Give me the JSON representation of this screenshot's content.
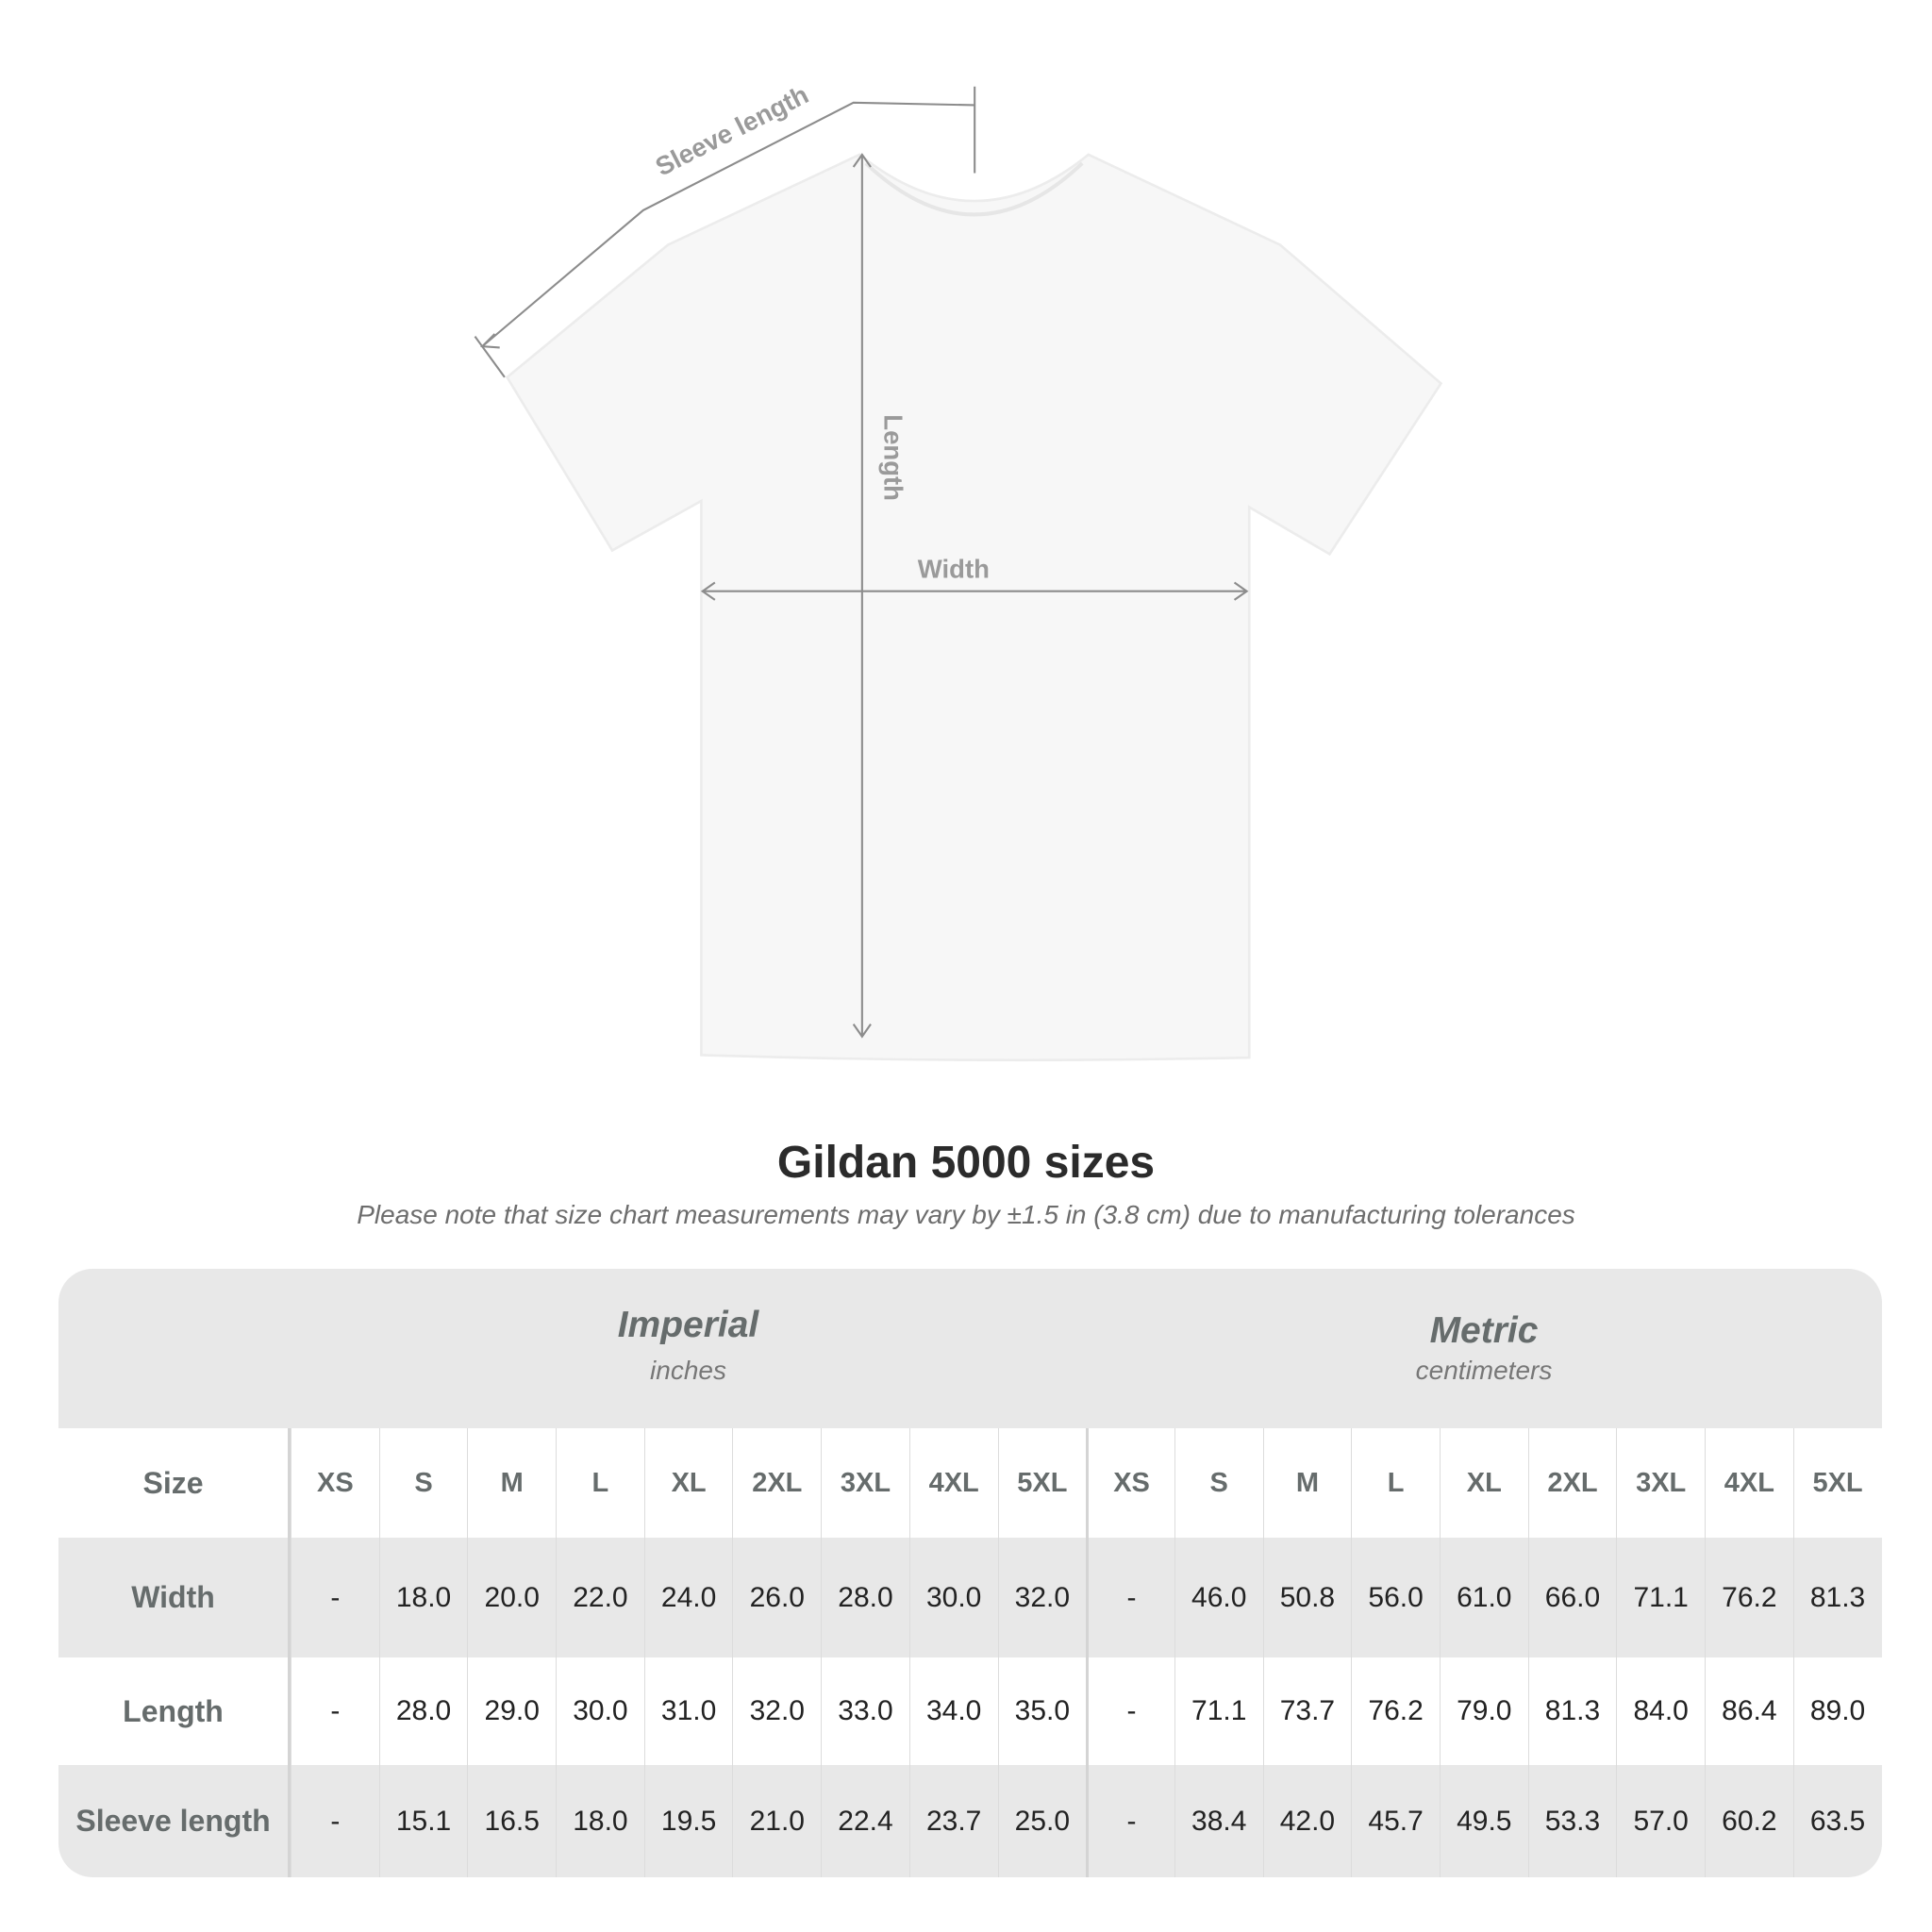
{
  "diagram": {
    "labels": {
      "sleeve_length": "Sleeve length",
      "length": "Length",
      "width": "Width"
    },
    "colors": {
      "shirt": "#f7f7f7",
      "measure_line": "#8c8c8c"
    }
  },
  "title": "Gildan 5000 sizes",
  "note": "Please note that size chart measurements may vary by ±1.5 in (3.8 cm) due to manufacturing tolerances",
  "table": {
    "imperial": {
      "name": "Imperial",
      "unit": "inches"
    },
    "metric": {
      "name": "Metric",
      "unit": "centimeters"
    },
    "size_label": "Size",
    "sizes": [
      "XS",
      "S",
      "M",
      "L",
      "XL",
      "2XL",
      "3XL",
      "4XL",
      "5XL"
    ],
    "rows": [
      {
        "label": "Width",
        "imperial": [
          "-",
          "18.0",
          "20.0",
          "22.0",
          "24.0",
          "26.0",
          "28.0",
          "30.0",
          "32.0"
        ],
        "metric": [
          "-",
          "46.0",
          "50.8",
          "56.0",
          "61.0",
          "66.0",
          "71.1",
          "76.2",
          "81.3"
        ]
      },
      {
        "label": "Length",
        "imperial": [
          "-",
          "28.0",
          "29.0",
          "30.0",
          "31.0",
          "32.0",
          "33.0",
          "34.0",
          "35.0"
        ],
        "metric": [
          "-",
          "71.1",
          "73.7",
          "76.2",
          "79.0",
          "81.3",
          "84.0",
          "86.4",
          "89.0"
        ]
      },
      {
        "label": "Sleeve length",
        "imperial": [
          "-",
          "15.1",
          "16.5",
          "18.0",
          "19.5",
          "21.0",
          "22.4",
          "23.7",
          "25.0"
        ],
        "metric": [
          "-",
          "38.4",
          "42.0",
          "45.7",
          "49.5",
          "53.3",
          "57.0",
          "60.2",
          "63.5"
        ]
      }
    ]
  }
}
